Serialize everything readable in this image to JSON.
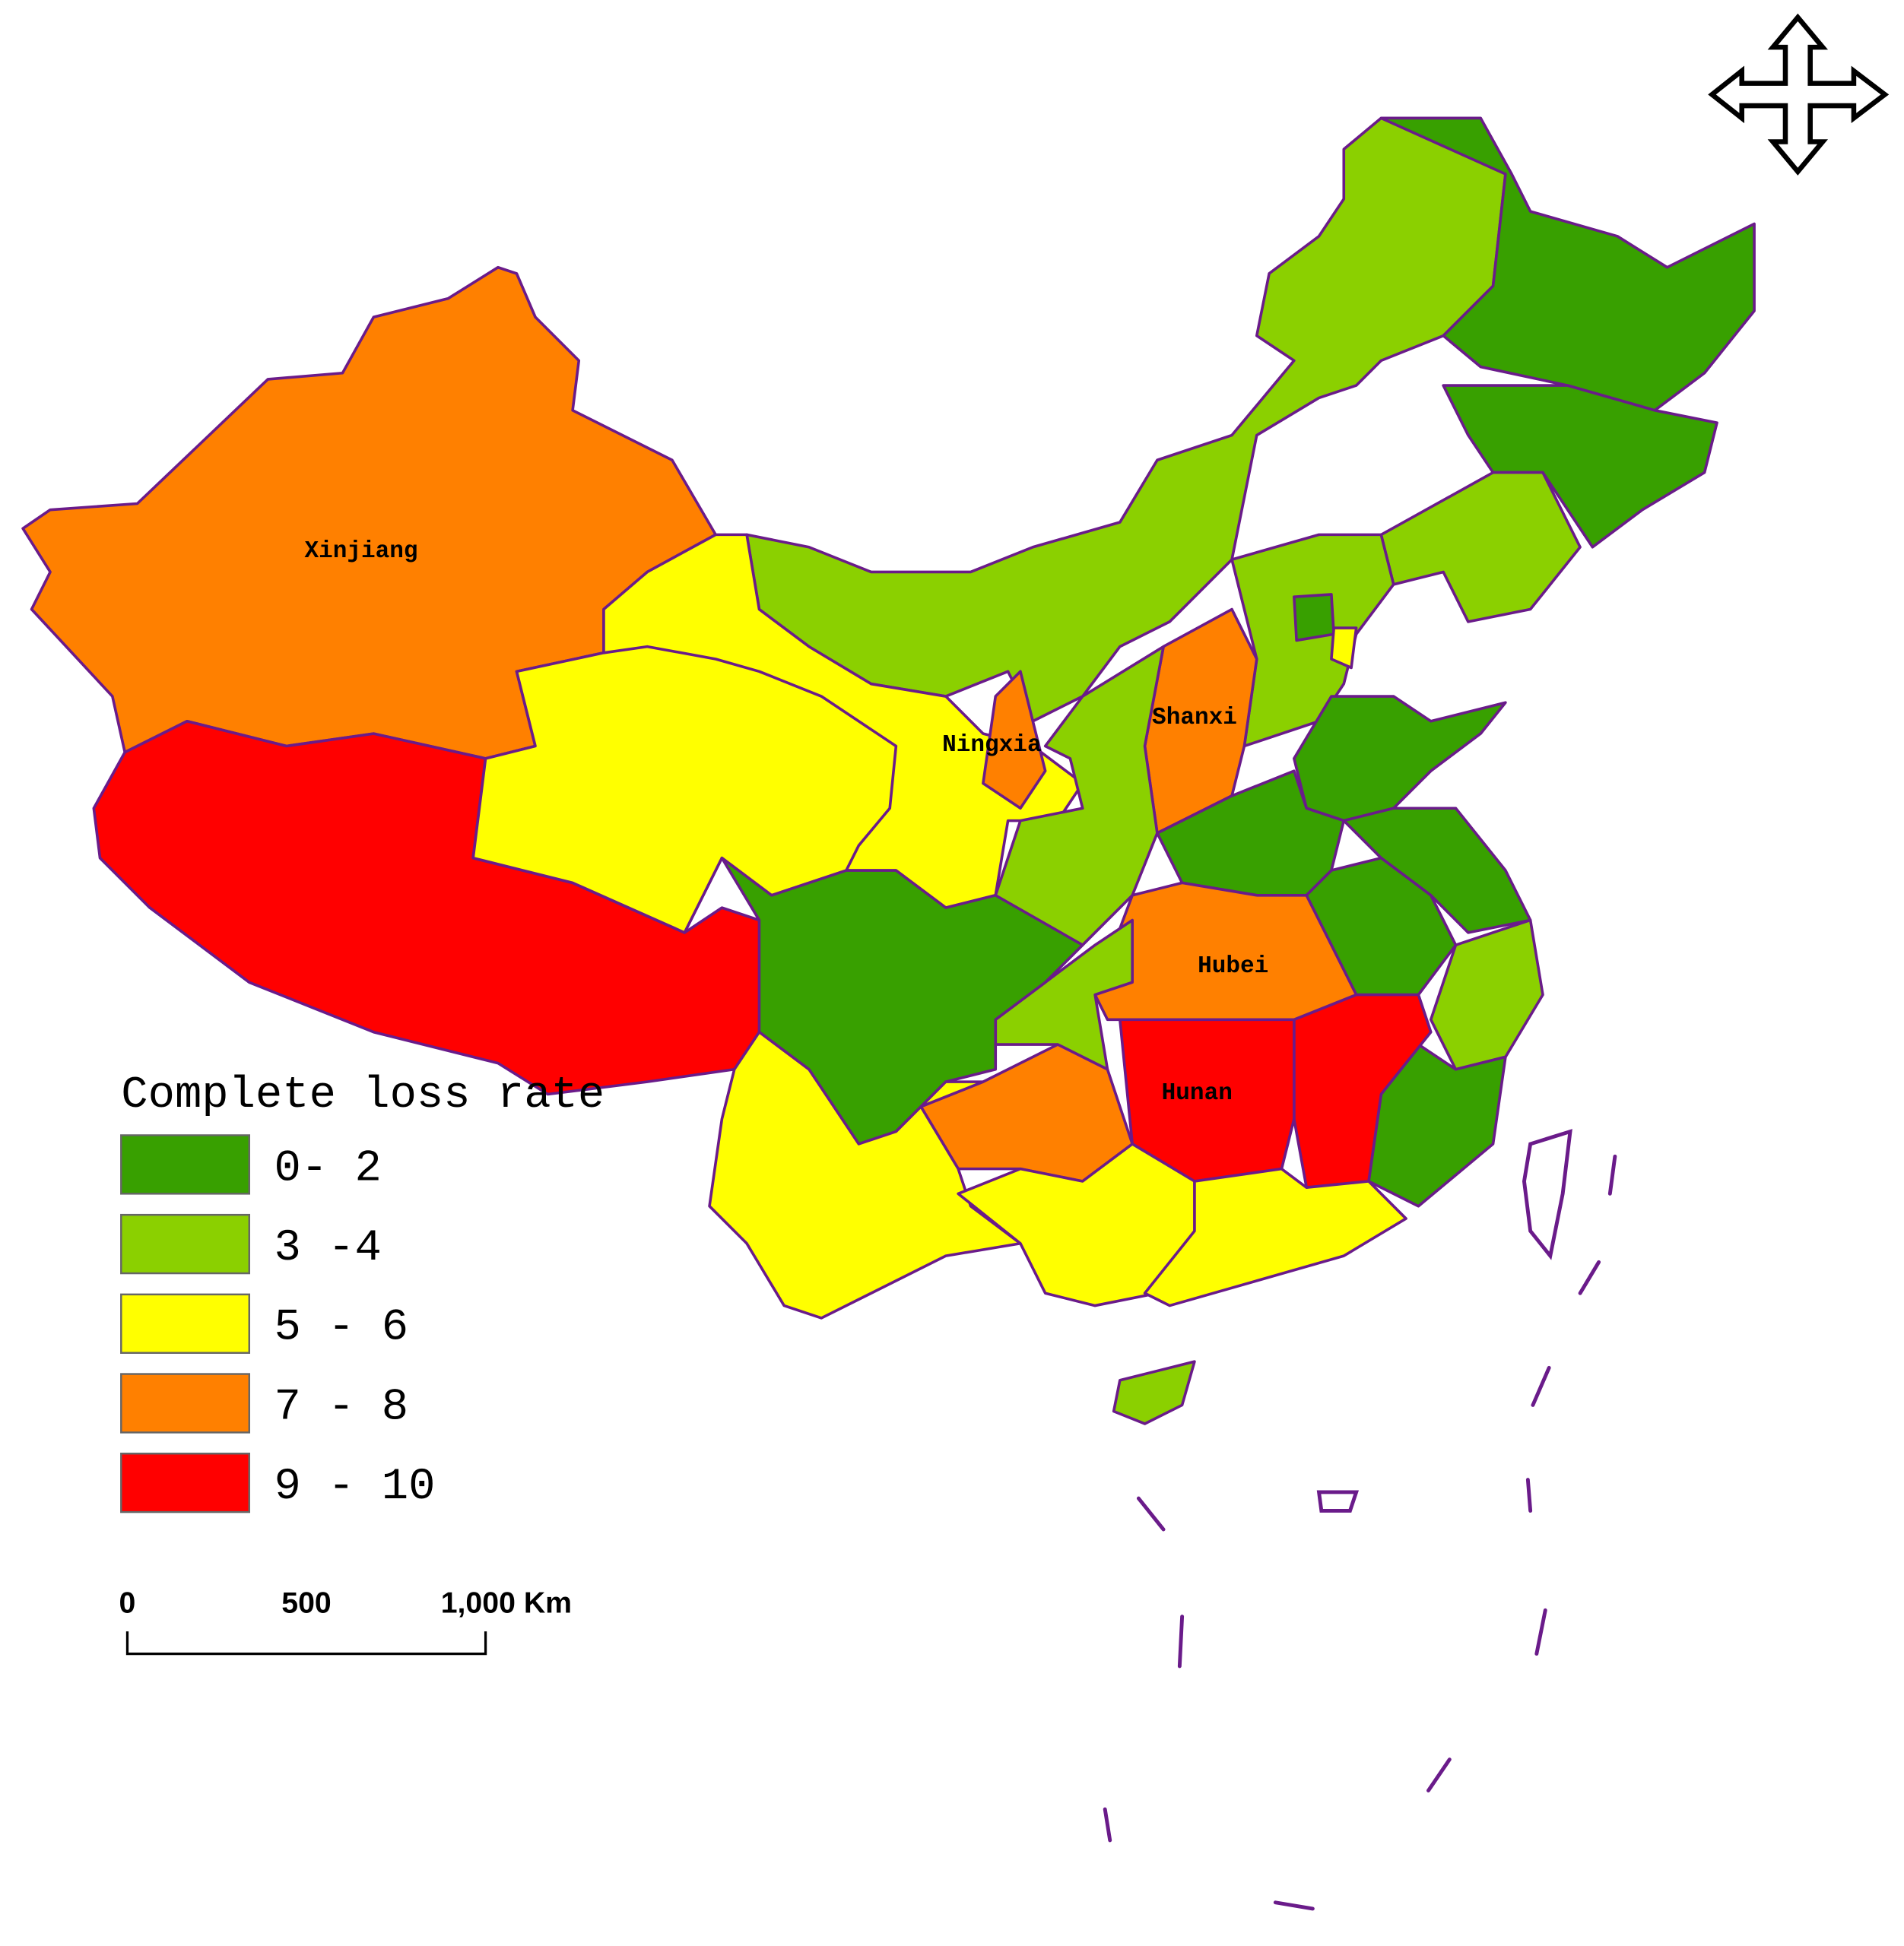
{
  "legend": {
    "title": "Complete loss rate",
    "items": [
      {
        "label": "0- 2",
        "color": "#38a000"
      },
      {
        "label": "3 -4",
        "color": "#8bd000"
      },
      {
        "label": "5 - 6",
        "color": "#ffff00"
      },
      {
        "label": "7 - 8",
        "color": "#ff8000"
      },
      {
        "label": "9 - 10",
        "color": "#ff0000"
      }
    ]
  },
  "region_labels": [
    "Xinjiang",
    "Ningxia",
    "Shanxi",
    "Hubei",
    "Hunan"
  ],
  "scale_bar": {
    "labels": [
      "0",
      "500",
      "1,000 Km"
    ]
  }
}
